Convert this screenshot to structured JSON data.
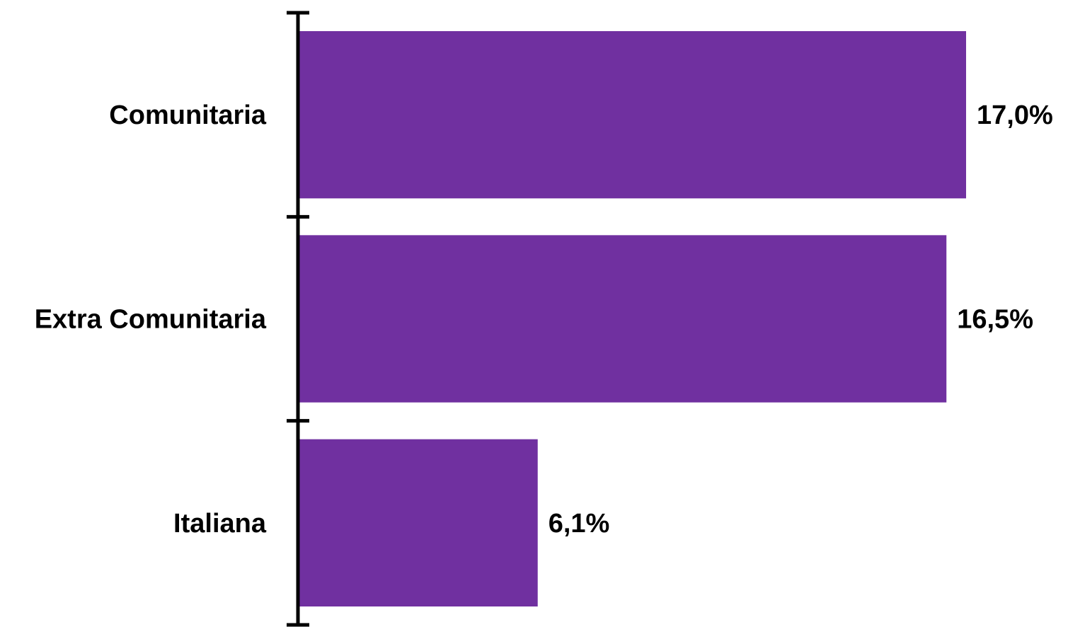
{
  "chart_data": {
    "type": "bar",
    "orientation": "horizontal",
    "categories": [
      "Comunitaria",
      "Extra Comunitaria",
      "Italiana"
    ],
    "values": [
      17.0,
      16.5,
      6.1
    ],
    "value_labels": [
      "17,0%",
      "16,5%",
      "6,1%"
    ],
    "unit": "%",
    "xlim": [
      0,
      17.0
    ],
    "grid": false,
    "legend": "none",
    "title": "",
    "xlabel": "",
    "ylabel": "",
    "colors": {
      "bar": "#7030A0",
      "axis": "#000000",
      "text": "#000000",
      "background": "#FFFFFF"
    }
  }
}
